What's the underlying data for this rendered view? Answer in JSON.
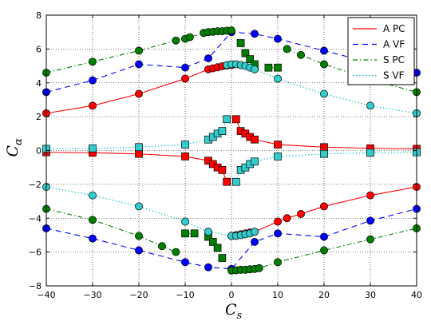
{
  "chart_data": {
    "type": "line",
    "xlabel": "C",
    "xlabel_sub": "s",
    "ylabel": "C",
    "ylabel_sub": "α",
    "xlim": [
      -40,
      40
    ],
    "ylim": [
      -8,
      8
    ],
    "xticks": [
      -40,
      -30,
      -20,
      -10,
      0,
      10,
      20,
      30,
      40
    ],
    "yticks": [
      -8,
      -6,
      -4,
      -2,
      0,
      2,
      4,
      6,
      8
    ],
    "grid": true,
    "legend_position": "top-right",
    "series": [
      {
        "name": "A PC",
        "color": "#ff0000",
        "dash": "solid",
        "marker_color": "#ff0000",
        "branches": [
          {
            "marker": "circle",
            "points": [
              [
                -40,
                2.2
              ],
              [
                -30,
                2.65
              ],
              [
                -20,
                3.35
              ],
              [
                -10,
                4.25
              ],
              [
                -5,
                4.8
              ],
              [
                -4,
                4.86
              ],
              [
                -3,
                4.92
              ],
              [
                -2,
                4.98
              ],
              [
                -1,
                5.02
              ],
              [
                0,
                5.05
              ]
            ]
          },
          {
            "marker": "circle",
            "points": [
              [
                0,
                -5.05
              ],
              [
                1,
                -5.0
              ],
              [
                2,
                -4.95
              ],
              [
                3,
                -4.9
              ],
              [
                4,
                -4.85
              ],
              [
                5,
                -4.8
              ],
              [
                10,
                -4.2
              ],
              [
                12,
                -4.0
              ],
              [
                15,
                -3.75
              ],
              [
                20,
                -3.3
              ],
              [
                30,
                -2.65
              ],
              [
                40,
                -2.15
              ]
            ]
          },
          {
            "marker": "square",
            "points": [
              [
                1,
                1.85
              ],
              [
                2,
                1.15
              ],
              [
                3,
                1.0
              ],
              [
                4,
                0.8
              ],
              [
                5,
                0.65
              ],
              [
                10,
                0.35
              ],
              [
                20,
                0.2
              ],
              [
                30,
                0.13
              ],
              [
                40,
                0.1
              ]
            ]
          },
          {
            "marker": "square",
            "points": [
              [
                -40,
                -0.1
              ],
              [
                -30,
                -0.13
              ],
              [
                -20,
                -0.2
              ],
              [
                -10,
                -0.35
              ],
              [
                -5,
                -0.6
              ],
              [
                -4,
                -0.8
              ],
              [
                -3,
                -1.0
              ],
              [
                -2,
                -1.15
              ],
              [
                -1,
                -1.85
              ]
            ]
          }
        ]
      },
      {
        "name": "A VF",
        "color": "#0000ff",
        "dash": "7,5",
        "marker_color": "#0000ff",
        "branches": [
          {
            "marker": "circle",
            "points": [
              [
                -40,
                3.45
              ],
              [
                -30,
                4.15
              ],
              [
                -20,
                5.1
              ],
              [
                -10,
                4.9
              ],
              [
                -5,
                5.45
              ],
              [
                0,
                7.0
              ],
              [
                5,
                6.9
              ],
              [
                10,
                6.6
              ],
              [
                20,
                5.9
              ],
              [
                30,
                5.2
              ],
              [
                40,
                4.6
              ]
            ]
          },
          {
            "marker": "circle",
            "points": [
              [
                -40,
                -4.6
              ],
              [
                -30,
                -5.2
              ],
              [
                -20,
                -5.9
              ],
              [
                -10,
                -6.6
              ],
              [
                -5,
                -6.9
              ],
              [
                0,
                -7.0
              ],
              [
                5,
                -5.4
              ],
              [
                10,
                -4.9
              ],
              [
                20,
                -5.1
              ],
              [
                30,
                -4.15
              ],
              [
                40,
                -3.45
              ]
            ]
          }
        ]
      },
      {
        "name": "S PC",
        "color": "#008000",
        "dash": "6,3,1.5,3",
        "marker_color": "#008000",
        "branches": [
          {
            "marker": "circle",
            "points": [
              [
                -40,
                4.6
              ],
              [
                -30,
                5.25
              ],
              [
                -20,
                5.9
              ],
              [
                -12,
                6.5
              ],
              [
                -10,
                6.6
              ],
              [
                -9,
                6.7
              ],
              [
                -6,
                6.95
              ],
              [
                -5,
                7.0
              ],
              [
                -4,
                7.02
              ],
              [
                -3,
                7.05
              ],
              [
                -2,
                7.05
              ],
              [
                -1,
                7.08
              ],
              [
                0,
                7.1
              ]
            ]
          },
          {
            "marker": "square",
            "points": [
              [
                2,
                6.35
              ],
              [
                3,
                5.75
              ],
              [
                4,
                5.4
              ],
              [
                5,
                5.1
              ]
            ]
          },
          {
            "marker": "square",
            "points": [
              [
                8,
                4.9
              ],
              [
                10,
                4.9
              ]
            ]
          },
          {
            "marker": "circle",
            "points": [
              [
                12,
                6.0
              ],
              [
                15,
                5.65
              ],
              [
                20,
                5.1
              ],
              [
                30,
                4.2
              ],
              [
                40,
                3.45
              ]
            ]
          },
          {
            "marker": "circle",
            "points": [
              [
                -40,
                -3.45
              ],
              [
                -30,
                -4.1
              ],
              [
                -20,
                -5.05
              ],
              [
                -15,
                -5.65
              ],
              [
                -12,
                -6.0
              ]
            ]
          },
          {
            "marker": "square",
            "points": [
              [
                -10,
                -4.9
              ],
              [
                -8,
                -4.9
              ]
            ]
          },
          {
            "marker": "square",
            "points": [
              [
                -5,
                -5.1
              ],
              [
                -4,
                -5.4
              ],
              [
                -3,
                -5.75
              ],
              [
                -2,
                -6.35
              ]
            ]
          },
          {
            "marker": "circle",
            "points": [
              [
                0,
                -7.1
              ],
              [
                1,
                -7.08
              ],
              [
                2,
                -7.05
              ],
              [
                3,
                -7.05
              ],
              [
                4,
                -7.02
              ],
              [
                5,
                -7.0
              ],
              [
                6,
                -6.95
              ],
              [
                10,
                -6.6
              ],
              [
                20,
                -5.9
              ],
              [
                30,
                -5.25
              ],
              [
                40,
                -4.6
              ]
            ]
          }
        ]
      },
      {
        "name": "S VF",
        "color": "#00bfbf",
        "dash": "1.5,2.5",
        "marker_color": "#33cccc",
        "branches": [
          {
            "marker": "circle",
            "points": [
              [
                -40,
                -2.15
              ],
              [
                -30,
                -2.65
              ],
              [
                -20,
                -3.3
              ],
              [
                -10,
                -4.2
              ],
              [
                -5,
                -4.8
              ],
              [
                0,
                -5.05
              ],
              [
                1,
                -5.05
              ],
              [
                2,
                -5.0
              ],
              [
                3,
                -4.95
              ],
              [
                4,
                -4.9
              ],
              [
                5,
                -4.8
              ]
            ]
          },
          {
            "marker": "circle",
            "points": [
              [
                -1,
                5.05
              ],
              [
                0,
                5.1
              ],
              [
                1,
                5.1
              ],
              [
                2,
                5.05
              ],
              [
                3,
                5.0
              ],
              [
                4,
                4.9
              ],
              [
                5,
                4.8
              ],
              [
                10,
                4.25
              ],
              [
                20,
                3.35
              ],
              [
                30,
                2.65
              ],
              [
                40,
                2.2
              ]
            ]
          },
          {
            "marker": "square",
            "points": [
              [
                -40,
                0.1
              ],
              [
                -30,
                0.13
              ],
              [
                -20,
                0.2
              ],
              [
                -10,
                0.35
              ],
              [
                -5,
                0.65
              ],
              [
                -4,
                0.8
              ],
              [
                -3,
                1.0
              ],
              [
                -2,
                1.15
              ],
              [
                -1,
                1.85
              ]
            ]
          },
          {
            "marker": "square",
            "points": [
              [
                1,
                -1.85
              ],
              [
                2,
                -1.15
              ],
              [
                3,
                -1.0
              ],
              [
                4,
                -0.8
              ],
              [
                5,
                -0.65
              ],
              [
                10,
                -0.35
              ],
              [
                20,
                -0.2
              ],
              [
                30,
                -0.13
              ],
              [
                40,
                -0.1
              ]
            ]
          }
        ]
      }
    ]
  }
}
